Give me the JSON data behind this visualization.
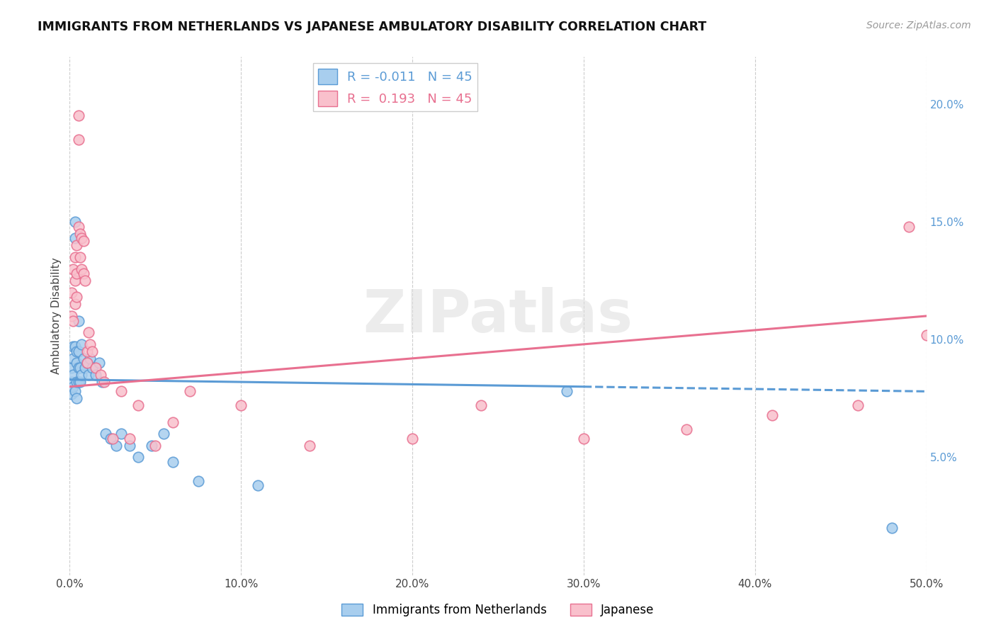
{
  "title": "IMMIGRANTS FROM NETHERLANDS VS JAPANESE AMBULATORY DISABILITY CORRELATION CHART",
  "source": "Source: ZipAtlas.com",
  "legend_blue": "Immigrants from Netherlands",
  "legend_pink": "Japanese",
  "ylabel": "Ambulatory Disability",
  "watermark": "ZIPatlas",
  "xlim": [
    0.0,
    0.5
  ],
  "ylim": [
    0.0,
    0.22
  ],
  "xtick_vals": [
    0.0,
    0.1,
    0.2,
    0.3,
    0.4,
    0.5
  ],
  "xtick_labels": [
    "0.0%",
    "10.0%",
    "20.0%",
    "30.0%",
    "40.0%",
    "50.0%"
  ],
  "ytick_vals": [
    0.05,
    0.1,
    0.15,
    0.2
  ],
  "ytick_labels": [
    "5.0%",
    "10.0%",
    "15.0%",
    "20.0%"
  ],
  "R_blue": -0.011,
  "N_blue": 45,
  "R_pink": 0.193,
  "N_pink": 45,
  "blue_face": "#A8CEEE",
  "blue_edge": "#5B9BD5",
  "pink_face": "#F9C0CC",
  "pink_edge": "#E87090",
  "trend_blue": "#5B9BD5",
  "trend_pink": "#E87090",
  "bg_color": "#FFFFFF",
  "grid_color": "#CCCCCC",
  "title_color": "#111111",
  "source_color": "#999999",
  "watermark_color": "#DDDDDD",
  "tick_color_y": "#5B9BD5",
  "tick_color_x": "#444444",
  "blue_x": [
    0.001,
    0.001,
    0.001,
    0.002,
    0.002,
    0.002,
    0.002,
    0.003,
    0.003,
    0.003,
    0.003,
    0.004,
    0.004,
    0.004,
    0.004,
    0.005,
    0.005,
    0.005,
    0.005,
    0.006,
    0.006,
    0.007,
    0.007,
    0.008,
    0.009,
    0.01,
    0.011,
    0.012,
    0.013,
    0.015,
    0.017,
    0.019,
    0.021,
    0.024,
    0.027,
    0.03,
    0.035,
    0.04,
    0.048,
    0.055,
    0.06,
    0.075,
    0.11,
    0.29,
    0.48
  ],
  "blue_y": [
    0.088,
    0.082,
    0.077,
    0.097,
    0.092,
    0.085,
    0.08,
    0.15,
    0.143,
    0.097,
    0.078,
    0.095,
    0.09,
    0.082,
    0.075,
    0.108,
    0.095,
    0.088,
    0.082,
    0.088,
    0.082,
    0.098,
    0.085,
    0.092,
    0.088,
    0.09,
    0.085,
    0.092,
    0.088,
    0.085,
    0.09,
    0.082,
    0.06,
    0.058,
    0.055,
    0.06,
    0.055,
    0.05,
    0.055,
    0.06,
    0.048,
    0.04,
    0.038,
    0.078,
    0.02
  ],
  "pink_x": [
    0.001,
    0.001,
    0.002,
    0.002,
    0.003,
    0.003,
    0.003,
    0.004,
    0.004,
    0.004,
    0.005,
    0.005,
    0.005,
    0.006,
    0.006,
    0.007,
    0.007,
    0.008,
    0.008,
    0.009,
    0.01,
    0.01,
    0.011,
    0.012,
    0.013,
    0.015,
    0.018,
    0.02,
    0.025,
    0.03,
    0.035,
    0.04,
    0.05,
    0.06,
    0.07,
    0.1,
    0.14,
    0.2,
    0.24,
    0.3,
    0.36,
    0.41,
    0.46,
    0.49,
    0.5
  ],
  "pink_y": [
    0.12,
    0.11,
    0.13,
    0.108,
    0.135,
    0.125,
    0.115,
    0.14,
    0.128,
    0.118,
    0.195,
    0.185,
    0.148,
    0.145,
    0.135,
    0.143,
    0.13,
    0.142,
    0.128,
    0.125,
    0.095,
    0.09,
    0.103,
    0.098,
    0.095,
    0.088,
    0.085,
    0.082,
    0.058,
    0.078,
    0.058,
    0.072,
    0.055,
    0.065,
    0.078,
    0.072,
    0.055,
    0.058,
    0.072,
    0.058,
    0.062,
    0.068,
    0.072,
    0.148,
    0.102
  ]
}
